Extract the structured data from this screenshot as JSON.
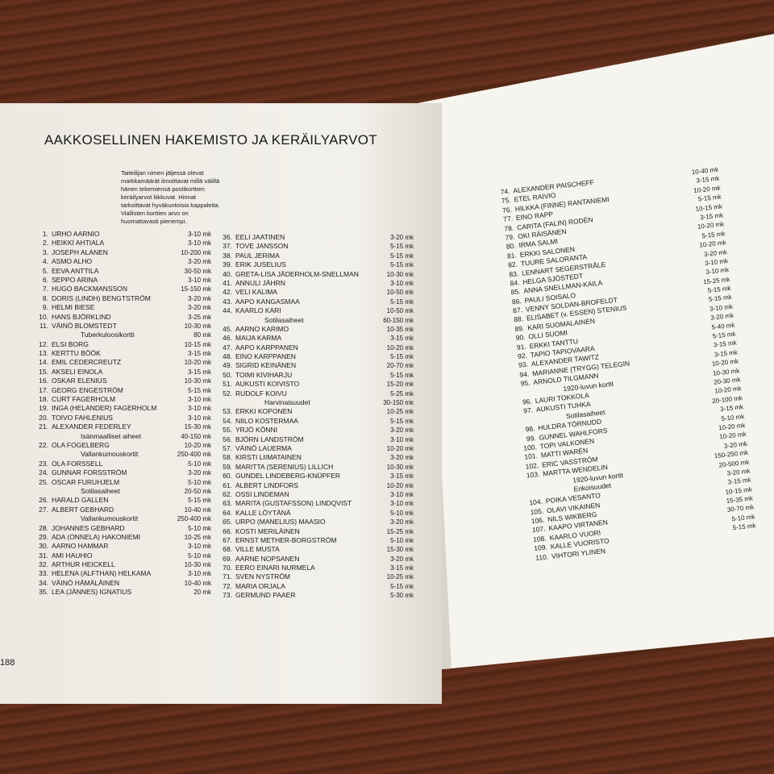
{
  "title": "AAKKOSELLINEN HAKEMISTO JA KERÄILYARVOT",
  "intro": "Taiteilijan nimen jäljessä olevat markkamäärät ilmoittavat millä välillä hänen tekemiensä postikorttien keräilyarvot liikkuvat. Hinnat tarkoittavat hyväkuntoisia kappaleita. Viallisten korttien arvo on huomattavasti pienempi.",
  "page_number": "188",
  "columns": [
    [
      {
        "no": "1.",
        "name": "URHO AARNIO",
        "price": "3-10 mk"
      },
      {
        "no": "2.",
        "name": "HEIKKI AHTIALA",
        "price": "3-10 mk"
      },
      {
        "no": "3.",
        "name": "JOSEPH ALANEN",
        "price": "10-200 mk"
      },
      {
        "no": "4.",
        "name": "ASMO ALHO",
        "price": "3-20 mk"
      },
      {
        "no": "5.",
        "name": "EEVA ANTTILA",
        "price": "30-50 mk"
      },
      {
        "no": "6.",
        "name": "SEPPO ARINA",
        "price": "3-10 mk"
      },
      {
        "no": "7.",
        "name": "HUGO BACKMANSSON",
        "price": "15-150 mk"
      },
      {
        "no": "8.",
        "name": "DORIS (LINDH) BENGTSTRÖM",
        "price": "3-20 mk"
      },
      {
        "no": "9.",
        "name": "HELMI BIESE",
        "price": "3-20 mk"
      },
      {
        "no": "10.",
        "name": "HANS BJÖRKLIND",
        "price": "3-25 mk"
      },
      {
        "no": "11.",
        "name": "VÄINÖ BLOMSTEDT",
        "price": "10-30 mk"
      },
      {
        "note": "Tuberkuloosikortti",
        "price": "80 mk"
      },
      {
        "no": "12.",
        "name": "ELSI BORG",
        "price": "10-15 mk"
      },
      {
        "no": "13.",
        "name": "KERTTU BÖÖK",
        "price": "3-15 mk"
      },
      {
        "no": "14.",
        "name": "EMIL CEDERCREUTZ",
        "price": "10-20 mk"
      },
      {
        "no": "15.",
        "name": "AKSELI EINOLA",
        "price": "3-15 mk"
      },
      {
        "no": "16.",
        "name": "OSKAR ELENIUS",
        "price": "10-30 mk"
      },
      {
        "no": "17.",
        "name": "GEORG ENGESTRÖM",
        "price": "5-15 mk"
      },
      {
        "no": "18.",
        "name": "CURT FAGERHOLM",
        "price": "3-10 mk"
      },
      {
        "no": "19.",
        "name": "INGA (HELANDER) FAGERHOLM",
        "price": "3-10 mk"
      },
      {
        "no": "20.",
        "name": "TOIVO FAHLENIUS",
        "price": "3-10 mk"
      },
      {
        "no": "21.",
        "name": "ALEXANDER FEDERLEY",
        "price": "15-30 mk"
      },
      {
        "note": "Isänmaalliset aiheet",
        "price": "40-150 mk"
      },
      {
        "no": "22.",
        "name": "OLA FOGELBERG",
        "price": "10-20 mk"
      },
      {
        "note": "Vallankumouskortit",
        "price": "250-400 mk"
      },
      {
        "no": "23.",
        "name": "OLA FORSSELL",
        "price": "5-10 mk"
      },
      {
        "no": "24.",
        "name": "GUNNAR FORSSTRÖM",
        "price": "3-20 mk"
      },
      {
        "no": "25.",
        "name": "OSCAR FURUHJELM",
        "price": "5-10 mk"
      },
      {
        "note": "Sotilasaiheet",
        "price": "20-50 mk"
      },
      {
        "no": "26.",
        "name": "HARALD GALLEN",
        "price": "5-15 mk"
      },
      {
        "no": "27.",
        "name": "ALBERT GEBHARD",
        "price": "10-40 mk"
      },
      {
        "note": "Vallankumouskortit",
        "price": "250-400 mk"
      },
      {
        "no": "28.",
        "name": "JOHANNES GEBHARD",
        "price": "5-10 mk"
      },
      {
        "no": "29.",
        "name": "ADA (ONNELA) HAKONIEMI",
        "price": "10-25 mk"
      },
      {
        "no": "30.",
        "name": "AARNO HAMMAR",
        "price": "3-10 mk"
      },
      {
        "no": "31.",
        "name": "AMI HAUHIO",
        "price": "5-10 mk"
      },
      {
        "no": "32.",
        "name": "ARTHUR HEICKELL",
        "price": "10-30 mk"
      },
      {
        "no": "33.",
        "name": "HELENA (ALFTHAN) HELKAMA",
        "price": "3-10 mk"
      },
      {
        "no": "34.",
        "name": "VÄINÖ HÄMÄLÄINEN",
        "price": "10-40 mk"
      },
      {
        "no": "35.",
        "name": "LEA (JÄNNES) IGNATIUS",
        "price": "20 mk"
      }
    ],
    [
      {
        "no": "36.",
        "name": "EELI JAATINEN",
        "price": "3-20 mk"
      },
      {
        "no": "37.",
        "name": "TOVE JANSSON",
        "price": "5-15 mk"
      },
      {
        "no": "38.",
        "name": "PAUL JERIMA",
        "price": "5-15 mk"
      },
      {
        "no": "39.",
        "name": "ERIK JUSELIUS",
        "price": "5-15 mk"
      },
      {
        "no": "40.",
        "name": "GRETA-LISA JÄDERHOLM-SNELLMAN",
        "price": "10-30 mk"
      },
      {
        "no": "41.",
        "name": "ANNULI JÄHRN",
        "price": "3-10 mk"
      },
      {
        "no": "42.",
        "name": "VELI KALIMA",
        "price": "10-50 mk"
      },
      {
        "no": "43.",
        "name": "AAPO KANGASMAA",
        "price": "5-15 mk"
      },
      {
        "no": "44.",
        "name": "KAARLO KARI",
        "price": "10-50 mk"
      },
      {
        "note": "Sotilasaiheet",
        "price": "60-150 mk"
      },
      {
        "no": "45.",
        "name": "AARNO KARIMO",
        "price": "10-35 mk"
      },
      {
        "no": "46.",
        "name": "MAIJA KARMA",
        "price": "3-15 mk"
      },
      {
        "no": "47.",
        "name": "AAPO KARPPANEN",
        "price": "10-20 mk"
      },
      {
        "no": "48.",
        "name": "EINO KARPPANEN",
        "price": "5-15 mk"
      },
      {
        "no": "49.",
        "name": "SIGRID KEINÄNEN",
        "price": "20-70 mk"
      },
      {
        "no": "50.",
        "name": "TOIMI KIVIHARJU",
        "price": "5-15 mk"
      },
      {
        "no": "51.",
        "name": "AUKUSTI KOIVISTO",
        "price": "15-20 mk"
      },
      {
        "no": "52.",
        "name": "RUDOLF KOIVU",
        "price": "5-25 mk"
      },
      {
        "note": "Harvinaisuudet",
        "price": "30-150 mk"
      },
      {
        "no": "53.",
        "name": "ERKKI KOPONEN",
        "price": "10-25 mk"
      },
      {
        "no": "54.",
        "name": "NIILO KOSTERMAA",
        "price": "5-15 mk"
      },
      {
        "no": "55.",
        "name": "YRJÖ KÖNNI",
        "price": "3-20 mk"
      },
      {
        "no": "56.",
        "name": "BJÖRN LANDSTRÖM",
        "price": "3-10 mk"
      },
      {
        "no": "57.",
        "name": "VÄINÖ LAUERMA",
        "price": "10-20 mk"
      },
      {
        "no": "58.",
        "name": "KIRSTI LIIMATAINEN",
        "price": "3-20 mk"
      },
      {
        "no": "59.",
        "name": "MARITTA (SERENIUS) LILLICH",
        "price": "10-30 mk"
      },
      {
        "no": "60.",
        "name": "GUNDEL LINDEBERG-KNÜPFER",
        "price": "3-15 mk"
      },
      {
        "no": "61.",
        "name": "ALBERT LINDFORS",
        "price": "10-20 mk"
      },
      {
        "no": "62.",
        "name": "OSSI LINDEMAN",
        "price": "3-10 mk"
      },
      {
        "no": "63.",
        "name": "MARITA (GUSTAFSSON) LINDQVIST",
        "price": "3-10 mk"
      },
      {
        "no": "64.",
        "name": "KALLE LÖYTÄNÄ",
        "price": "5-10 mk"
      },
      {
        "no": "65.",
        "name": "URPO (MANELIUS) MAASIO",
        "price": "3-20 mk"
      },
      {
        "no": "66.",
        "name": "KOSTI MERILÄINEN",
        "price": "15-25 mk"
      },
      {
        "no": "67.",
        "name": "ERNST METHER-BORGSTRÖM",
        "price": "5-10 mk"
      },
      {
        "no": "68.",
        "name": "VILLE MUSTA",
        "price": "15-30 mk"
      },
      {
        "no": "69.",
        "name": "AARNE NOPSANEN",
        "price": "3-20 mk"
      },
      {
        "no": "70.",
        "name": "EERO EINARI NURMELA",
        "price": "3-15 mk"
      },
      {
        "no": "71.",
        "name": "SVEN NYSTRÖM",
        "price": "10-25 mk"
      },
      {
        "no": "72.",
        "name": "MARIA ORJALA",
        "price": "5-15 mk"
      },
      {
        "no": "73.",
        "name": "GERMUND PAAER",
        "price": "5-30 mk"
      }
    ],
    [
      {
        "no": "74.",
        "name": "ALEXANDER PAISCHEFF",
        "price": "10-40 mk"
      },
      {
        "no": "75.",
        "name": "ETEL RAIVIO",
        "price": "3-15 mk"
      },
      {
        "no": "76.",
        "name": "HILKKA (FINNE) RANTANIEMI",
        "price": "10-20 mk"
      },
      {
        "no": "77.",
        "name": "EINO RAPP",
        "price": "5-15 mk"
      },
      {
        "no": "78.",
        "name": "CARITA (FALIN) RODÉN",
        "price": "10-15 mk"
      },
      {
        "no": "79.",
        "name": "OKI RÄISÄNEN",
        "price": "3-15 mk"
      },
      {
        "no": "80.",
        "name": "IRMA SALMI",
        "price": "10-20 mk"
      },
      {
        "no": "81.",
        "name": "ERKKI SALONEN",
        "price": "5-15 mk"
      },
      {
        "no": "82.",
        "name": "TUURE SALORANTA",
        "price": "10-20 mk"
      },
      {
        "no": "83.",
        "name": "LENNART SEGERSTRÅLE",
        "price": "3-20 mk"
      },
      {
        "no": "84.",
        "name": "HELGA SJÖSTEDT",
        "price": "3-10 mk"
      },
      {
        "no": "85.",
        "name": "ANNA SNELLMAN-KAILA",
        "price": "3-10 mk"
      },
      {
        "no": "86.",
        "name": "PAULI SOISALO",
        "price": "15-25 mk"
      },
      {
        "no": "87.",
        "name": "VENNY SOLDAN-BROFELDT",
        "price": "5-15 mk"
      },
      {
        "no": "88.",
        "name": "ELISABET (v. ESSEN) STENIUS",
        "price": "5-15 mk"
      },
      {
        "no": "89.",
        "name": "KARI SUOMALAINEN",
        "price": "3-10 mk"
      },
      {
        "no": "90.",
        "name": "OLLI SUOMI",
        "price": "3-20 mk"
      },
      {
        "no": "91.",
        "name": "ERKKI TANTTU",
        "price": "5-40 mk"
      },
      {
        "no": "92.",
        "name": "TAPIO TAPIOVAARA",
        "price": "5-15 mk"
      },
      {
        "no": "93.",
        "name": "ALEXANDER TAWITZ",
        "price": "3-15 mk"
      },
      {
        "no": "94.",
        "name": "MARIANNE (TRYGG) TELEGIN",
        "price": "3-15 mk"
      },
      {
        "no": "95.",
        "name": "ARNOLD TILGMANN",
        "price": "10-20 mk"
      },
      {
        "note": "1920-luvun kortit",
        "price": "10-30 mk"
      },
      {
        "no": "96.",
        "name": "LAURI TOKKOLA",
        "price": "20-30 mk"
      },
      {
        "no": "97.",
        "name": "AUKUSTI TUHKA",
        "price": "10-20 mk"
      },
      {
        "note": "Sotilasaiheet",
        "price": "20-100 mk"
      },
      {
        "no": "98.",
        "name": "HULDRA TÖRNUDD",
        "price": "3-15 mk"
      },
      {
        "no": "99.",
        "name": "GUNNEL WAHLFORS",
        "price": "5-10 mk"
      },
      {
        "no": "100.",
        "name": "TOPI VALKONEN",
        "price": "10-20 mk"
      },
      {
        "no": "101.",
        "name": "MATTI WARÉN",
        "price": "10-20 mk"
      },
      {
        "no": "102.",
        "name": "ERIC VASSTRÖM",
        "price": "3-20 mk"
      },
      {
        "no": "103.",
        "name": "MARTTA WENDELIN",
        "price": "150-250 mk"
      },
      {
        "note": "1920-luvun kortit",
        "price": "20-500 mk"
      },
      {
        "note": "Erikoisuudet",
        "price": "3-20 mk"
      },
      {
        "no": "104.",
        "name": "POIKA VESANTO",
        "price": "3-15 mk"
      },
      {
        "no": "105.",
        "name": "OLAVI VIKAINEN",
        "price": "10-15 mk"
      },
      {
        "no": "106.",
        "name": "NILS WIKBERG",
        "price": "15-35 mk"
      },
      {
        "no": "107.",
        "name": "KAAPO VIRTANEN",
        "price": "30-70 mk"
      },
      {
        "no": "108.",
        "name": "KAARLO VUORI",
        "price": "5-10 mk"
      },
      {
        "no": "109.",
        "name": "KALLE VUORISTO",
        "price": "5-15 mk"
      },
      {
        "no": "110.",
        "name": "VIHTORI YLINEN"
      }
    ]
  ]
}
